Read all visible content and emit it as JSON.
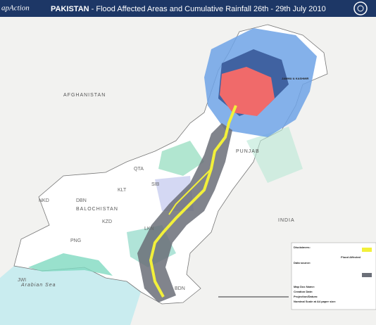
{
  "header": {
    "logo": "apAction",
    "title_bold": "PAKISTAN",
    "title_rest": " - Flood Affected Areas and Cumulative Rainfall 26th - 29th July 2010"
  },
  "labels": [
    "AFGHANISTAN",
    "INDIA",
    "BALOCHISTAN",
    "PUNJAB",
    "Arabian Sea",
    "NKD",
    "DBN",
    "KLT",
    "KZD",
    "PNG",
    "JWI",
    "QTA",
    "SIB",
    "LKN",
    "BDN",
    "JAMMU & KASHMIR"
  ],
  "legend": {
    "heading": "Flood Affected",
    "sections": [
      "Disclaimers:",
      "Data source:"
    ]
  },
  "metadata": {
    "fields": [
      "Map Doc Name:",
      "Creation Date:",
      "Projection/Datum:",
      "Nominal Scale at A4 paper size:"
    ]
  }
}
